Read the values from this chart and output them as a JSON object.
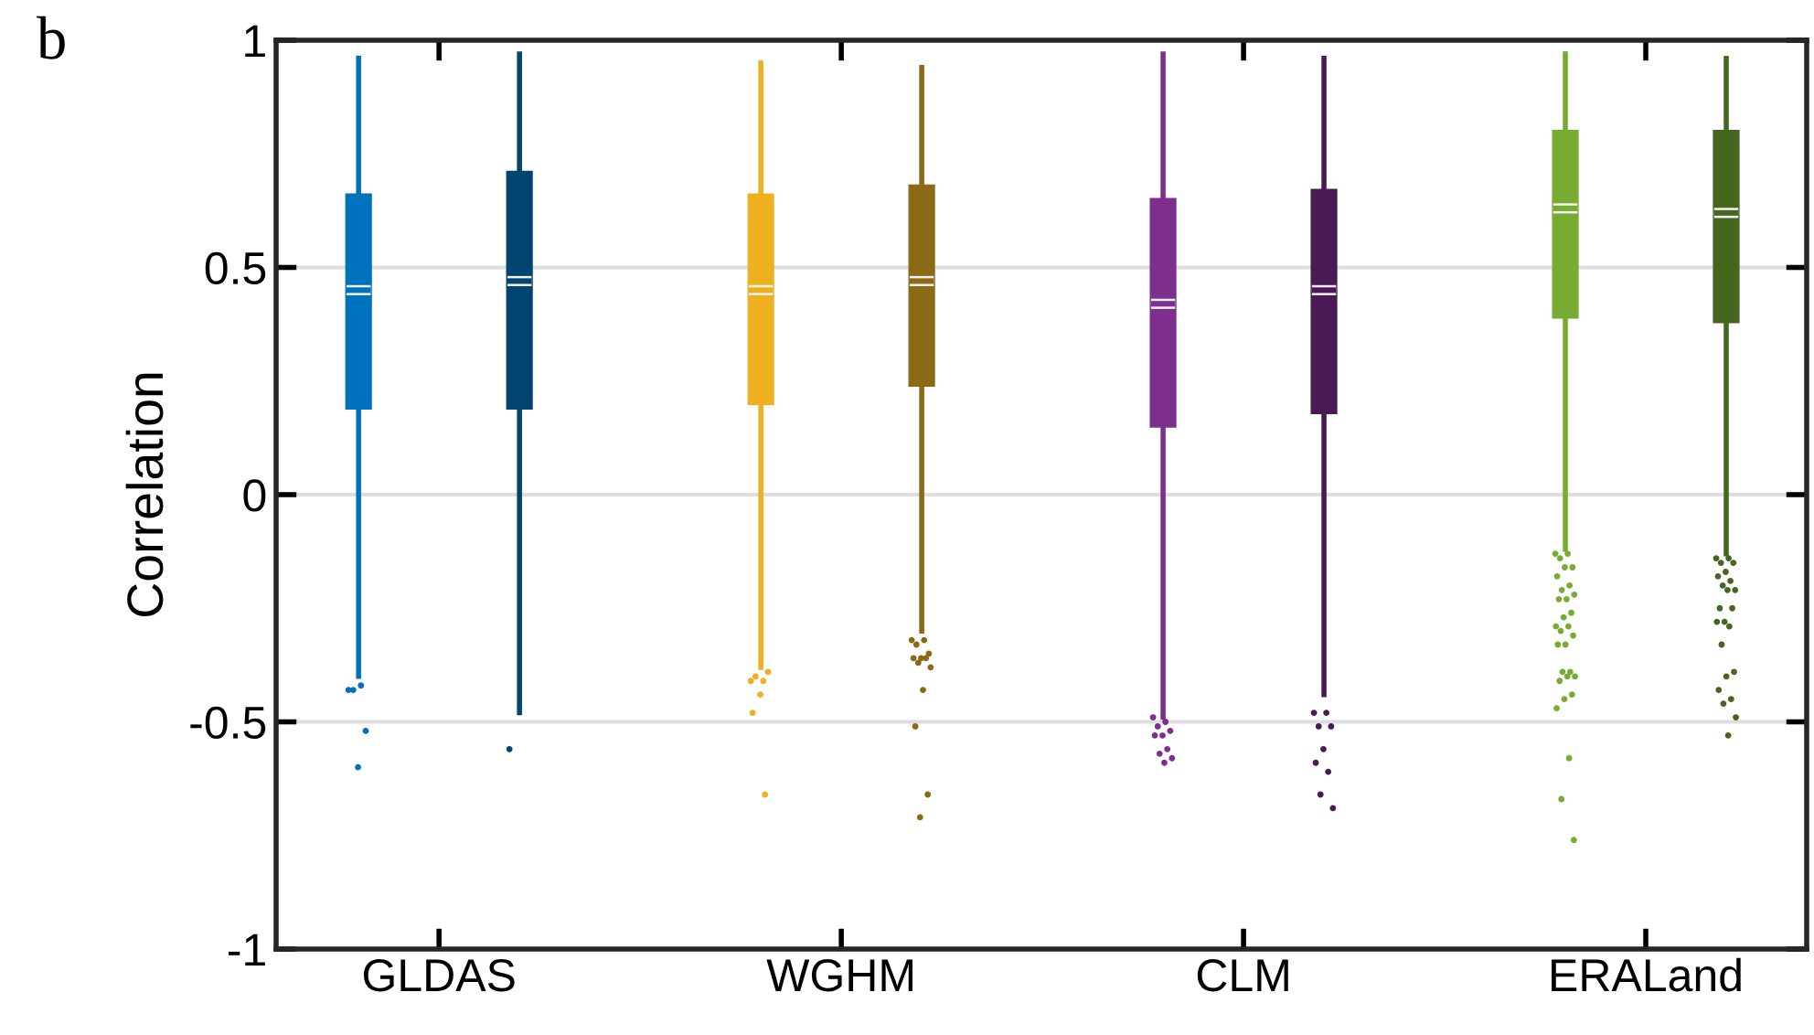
{
  "chart_data": {
    "type": "box",
    "title": "b",
    "ylabel": "Correlation",
    "categories": [
      "GLDAS",
      "WGHM",
      "CLM",
      "ERALand"
    ],
    "ylim": [
      -1,
      1
    ],
    "yticks": [
      -1,
      -0.5,
      0,
      0.5,
      1
    ],
    "grid": "y",
    "legend": false,
    "series": [
      {
        "colors": [
          "#0072bd",
          "#edb120",
          "#7e2f8e",
          "#77ac30"
        ],
        "boxes": [
          {
            "low": -0.4,
            "q1": 0.19,
            "median": 0.45,
            "q3": 0.66,
            "high": 0.96,
            "outliers": [
              -0.43,
              -0.42,
              -0.43,
              -0.52,
              -0.6
            ]
          },
          {
            "low": -0.38,
            "q1": 0.2,
            "median": 0.45,
            "q3": 0.66,
            "high": 0.95,
            "outliers": [
              -0.41,
              -0.41,
              -0.4,
              -0.39,
              -0.44,
              -0.48,
              -0.66
            ]
          },
          {
            "low": -0.49,
            "q1": 0.15,
            "median": 0.42,
            "q3": 0.65,
            "high": 0.97,
            "outliers": [
              -0.49,
              -0.5,
              -0.51,
              -0.52,
              -0.53,
              -0.53,
              -0.56,
              -0.57,
              -0.58,
              -0.59
            ]
          },
          {
            "low": -0.12,
            "q1": 0.39,
            "median": 0.63,
            "q3": 0.8,
            "high": 0.97,
            "outliers": [
              -0.13,
              -0.13,
              -0.14,
              -0.16,
              -0.16,
              -0.18,
              -0.2,
              -0.21,
              -0.22,
              -0.23,
              -0.23,
              -0.26,
              -0.27,
              -0.29,
              -0.29,
              -0.3,
              -0.31,
              -0.33,
              -0.33,
              -0.39,
              -0.39,
              -0.4,
              -0.4,
              -0.41,
              -0.44,
              -0.45,
              -0.47,
              -0.58,
              -0.67,
              -0.76
            ]
          }
        ]
      },
      {
        "colors": [
          "#00446f",
          "#8c6914",
          "#4b1a54",
          "#466620"
        ],
        "boxes": [
          {
            "low": -0.48,
            "q1": 0.19,
            "median": 0.47,
            "q3": 0.71,
            "high": 0.97,
            "outliers": [
              -0.56
            ]
          },
          {
            "low": -0.3,
            "q1": 0.24,
            "median": 0.47,
            "q3": 0.68,
            "high": 0.94,
            "outliers": [
              -0.32,
              -0.32,
              -0.33,
              -0.35,
              -0.36,
              -0.36,
              -0.36,
              -0.37,
              -0.38,
              -0.43,
              -0.51,
              -0.66,
              -0.71
            ]
          },
          {
            "low": -0.44,
            "q1": 0.18,
            "median": 0.45,
            "q3": 0.67,
            "high": 0.96,
            "outliers": [
              -0.48,
              -0.48,
              -0.51,
              -0.51,
              -0.56,
              -0.59,
              -0.61,
              -0.66,
              -0.69
            ]
          },
          {
            "low": -0.13,
            "q1": 0.38,
            "median": 0.62,
            "q3": 0.8,
            "high": 0.96,
            "outliers": [
              -0.14,
              -0.14,
              -0.15,
              -0.15,
              -0.17,
              -0.18,
              -0.19,
              -0.2,
              -0.21,
              -0.21,
              -0.25,
              -0.25,
              -0.28,
              -0.28,
              -0.29,
              -0.33,
              -0.39,
              -0.4,
              -0.43,
              -0.45,
              -0.46,
              -0.49,
              -0.53
            ]
          }
        ]
      }
    ]
  }
}
